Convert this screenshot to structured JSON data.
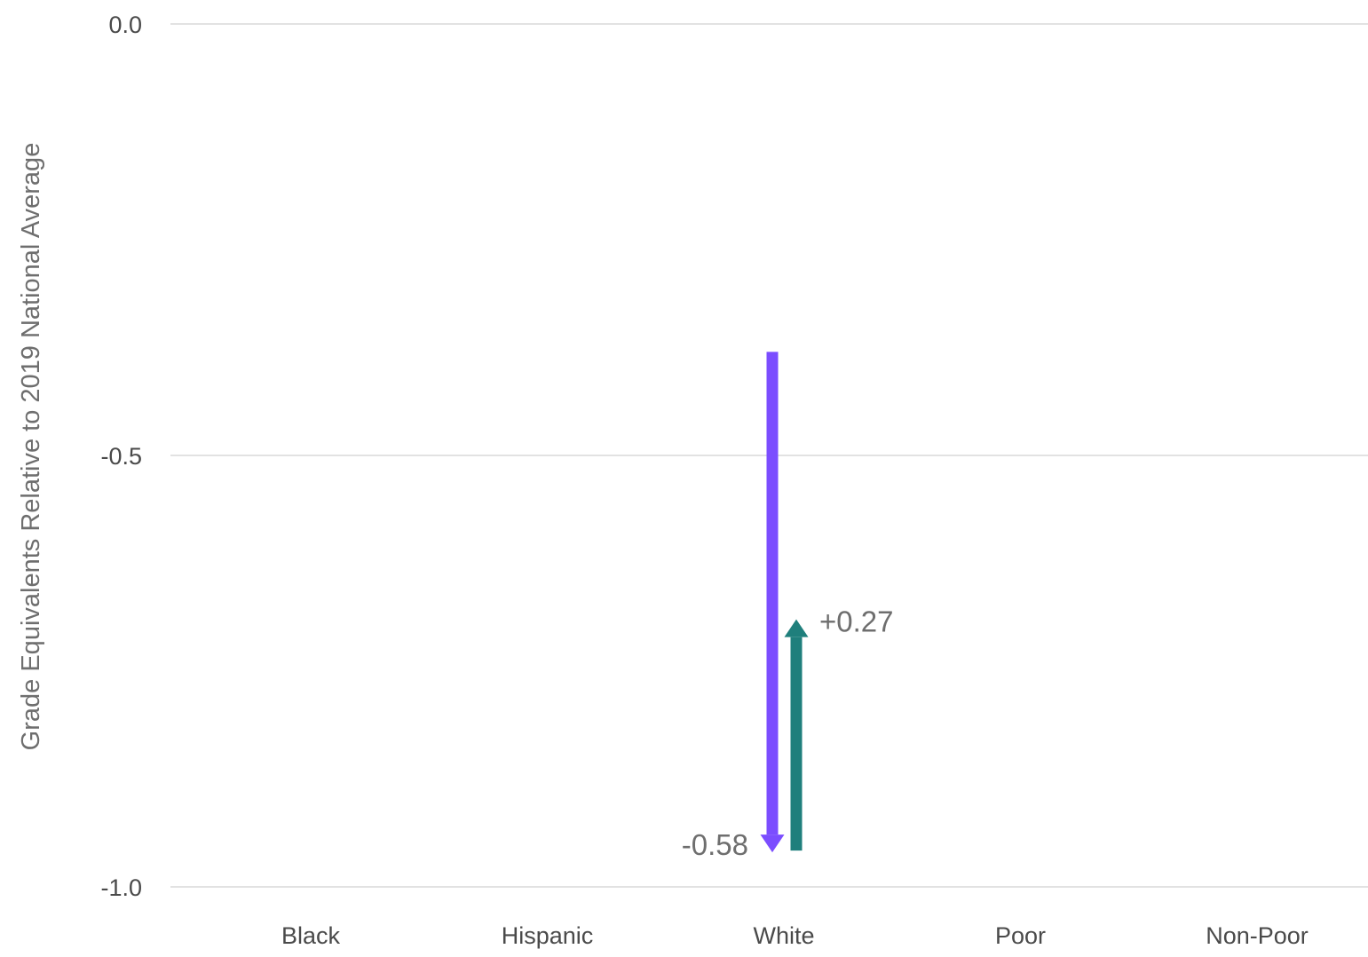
{
  "chart_data": {
    "type": "bar",
    "title": "",
    "xlabel": "",
    "ylabel": "Grade Equivalents Relative to 2019 National Average",
    "categories": [
      "Black",
      "Hispanic",
      "White",
      "Poor",
      "Non-Poor"
    ],
    "ylim": [
      -1.0,
      0.0
    ],
    "yticks": [
      "0.0",
      "-0.5",
      "-1.0"
    ],
    "ytick_values": [
      0.0,
      -0.5,
      -1.0
    ],
    "grid": true,
    "series": [
      {
        "kind": "decline",
        "color": "#7b4dff",
        "category": "White",
        "start": -0.38,
        "end": -0.96,
        "value": -0.58,
        "label": "-0.58"
      },
      {
        "kind": "recovery",
        "color": "#1f7f7c",
        "category": "White",
        "start": -0.96,
        "end": -0.69,
        "value": 0.27,
        "label": "+0.27"
      }
    ]
  }
}
